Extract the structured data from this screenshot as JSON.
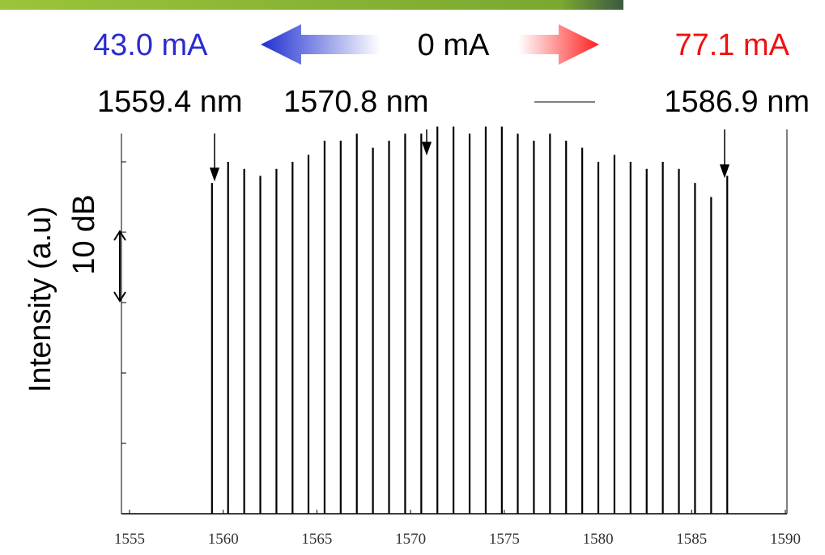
{
  "chart_data": {
    "type": "spectrum",
    "ylabel": "Intensity (a.u)",
    "scale_label": "10 dB",
    "currents": {
      "left": "43.0 mA",
      "center": "0 mA",
      "right": "77.1 mA"
    },
    "wavelength_labels": [
      "1559.4 nm",
      "1570.8 nm",
      "1586.9 nm"
    ],
    "color": "#000000",
    "x": [
      1559.4,
      1560.26,
      1561.12,
      1561.98,
      1562.84,
      1563.7,
      1564.55,
      1565.41,
      1566.27,
      1567.13,
      1567.99,
      1568.85,
      1569.71,
      1570.57,
      1571.43,
      1572.29,
      1573.15,
      1574.01,
      1574.87,
      1575.72,
      1576.58,
      1577.44,
      1578.3,
      1579.16,
      1580.02,
      1580.88,
      1581.74,
      1582.6,
      1583.46,
      1584.32,
      1585.18,
      1586.04,
      1586.9
    ],
    "values": [
      47,
      50,
      49,
      48,
      49,
      50,
      51,
      53,
      53,
      54,
      52,
      53,
      54,
      54,
      55,
      55,
      54,
      55,
      55,
      54,
      53,
      54,
      53,
      52,
      50,
      51,
      50,
      49,
      50,
      49,
      47,
      45,
      48
    ],
    "xlim": [
      1555,
      1590
    ],
    "xticks": [
      1555,
      1560,
      1565,
      1570,
      1575,
      1580,
      1585,
      1590
    ],
    "ylim": [
      0,
      54.6
    ],
    "yticks": [
      0,
      10,
      20,
      30,
      40,
      50
    ]
  }
}
